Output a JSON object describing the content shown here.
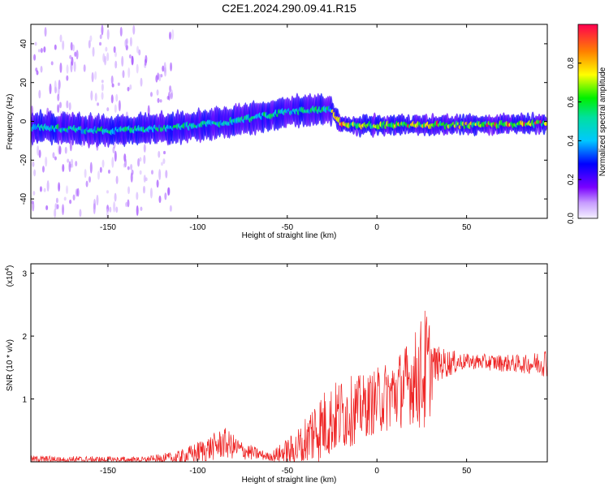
{
  "title": "C2E1.2024.290.09.41.R15",
  "chart_data": [
    {
      "type": "heatmap",
      "xlabel": "Height of straight line (km)",
      "ylabel": "Frequency (Hz)",
      "xlim": [
        -193,
        95
      ],
      "ylim": [
        -50,
        50
      ],
      "xticks": [
        -150,
        -100,
        -50,
        0,
        50
      ],
      "yticks": [
        -40,
        -20,
        0,
        20,
        40
      ],
      "colorbar": {
        "label": "Normalized spectral amplitude",
        "range": [
          0,
          1
        ],
        "ticks": [
          "0.0",
          "0.2",
          "0.4",
          "0.6",
          "0.8"
        ]
      },
      "ridge_center_hz": [
        {
          "x": -190,
          "y": -3
        },
        {
          "x": -150,
          "y": -5
        },
        {
          "x": -110,
          "y": -3
        },
        {
          "x": -80,
          "y": 0
        },
        {
          "x": -50,
          "y": 5
        },
        {
          "x": -35,
          "y": 6
        },
        {
          "x": -25,
          "y": 6
        },
        {
          "x": -20,
          "y": -2
        },
        {
          "x": 0,
          "y": -2
        },
        {
          "x": 50,
          "y": -2
        },
        {
          "x": 95,
          "y": -1
        }
      ]
    },
    {
      "type": "line",
      "xlabel": "Height of straight line (km)",
      "ylabel": "SNR (10 * v/v)",
      "yscale_label": "(x10",
      "yscale_exp": "4",
      "yscale_close": ")",
      "xlim": [
        -193,
        95
      ],
      "ylim": [
        0,
        3.15
      ],
      "xticks": [
        -150,
        -100,
        -50,
        0,
        50
      ],
      "yticks": [
        1,
        2,
        3
      ],
      "color": "#ee2222",
      "envelope": [
        {
          "x": -193,
          "base": 0.04,
          "amp": 0.06
        },
        {
          "x": -130,
          "base": 0.03,
          "amp": 0.05
        },
        {
          "x": -110,
          "base": 0.06,
          "amp": 0.12
        },
        {
          "x": -95,
          "base": 0.2,
          "amp": 0.2
        },
        {
          "x": -85,
          "base": 0.3,
          "amp": 0.25
        },
        {
          "x": -75,
          "base": 0.18,
          "amp": 0.15
        },
        {
          "x": -60,
          "base": 0.08,
          "amp": 0.06
        },
        {
          "x": -45,
          "base": 0.2,
          "amp": 0.3
        },
        {
          "x": -35,
          "base": 0.5,
          "amp": 0.55
        },
        {
          "x": -20,
          "base": 0.75,
          "amp": 0.6
        },
        {
          "x": -5,
          "base": 0.9,
          "amp": 0.5
        },
        {
          "x": 10,
          "base": 1.1,
          "amp": 0.6
        },
        {
          "x": 20,
          "base": 1.3,
          "amp": 0.7
        },
        {
          "x": 28,
          "base": 1.45,
          "amp": 1.1
        },
        {
          "x": 32,
          "base": 1.55,
          "amp": 0.3
        },
        {
          "x": 50,
          "base": 1.6,
          "amp": 0.12
        },
        {
          "x": 85,
          "base": 1.55,
          "amp": 0.15
        },
        {
          "x": 95,
          "base": 1.6,
          "amp": 0.25
        }
      ]
    }
  ]
}
